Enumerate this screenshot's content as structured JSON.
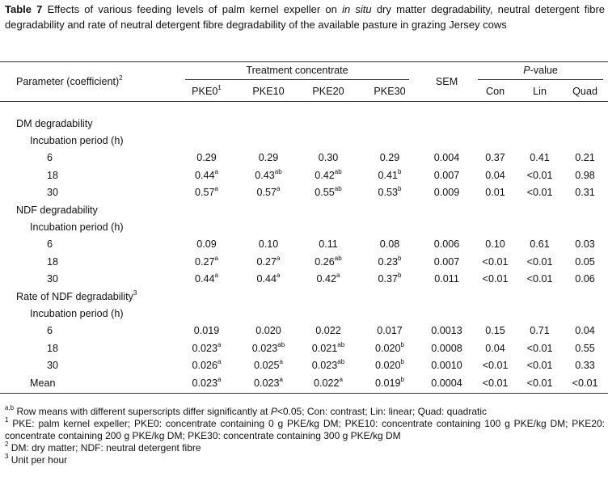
{
  "caption": {
    "label": "Table 7",
    "text_before": " Effects of various feeding levels of palm kernel expeller on ",
    "italic": "in situ",
    "text_after": " dry matter degradability, neutral detergent fibre degradability and rate of neutral detergent fibre degradability of the available pasture in grazing Jersey cows"
  },
  "header": {
    "parameter": "Parameter (coefficient)",
    "parameter_sup": "2",
    "treatment": "Treatment concentrate",
    "sem": "SEM",
    "pvalue_italic": "P",
    "pvalue_rest": "-value",
    "columns": [
      {
        "text": "PKE0",
        "sup": "1"
      },
      "PKE10",
      "PKE20",
      "PKE30"
    ],
    "pcolumns": [
      "Con",
      "Lin",
      "Quad"
    ]
  },
  "sections": [
    {
      "title": "DM degradability",
      "subtitle": "Incubation period (h)",
      "rows": [
        {
          "label": "6",
          "cells": [
            "0.29",
            "0.29",
            "0.30",
            "0.29",
            "0.004",
            "0.37",
            "0.41",
            "0.21"
          ]
        },
        {
          "label": "18",
          "cells": [
            {
              "text": "0.44",
              "sup": "a"
            },
            {
              "text": "0.43",
              "sup": "ab"
            },
            {
              "text": "0.42",
              "sup": "ab"
            },
            {
              "text": "0.41",
              "sup": "b"
            },
            "0.007",
            "0.04",
            "<0.01",
            "0.98"
          ]
        },
        {
          "label": "30",
          "cells": [
            {
              "text": "0.57",
              "sup": "a"
            },
            {
              "text": "0.57",
              "sup": "a"
            },
            {
              "text": "0.55",
              "sup": "ab"
            },
            {
              "text": "0.53",
              "sup": "b"
            },
            "0.009",
            "0.01",
            "<0.01",
            "0.31"
          ]
        }
      ]
    },
    {
      "title": "NDF degradability",
      "subtitle": "Incubation period (h)",
      "rows": [
        {
          "label": "6",
          "cells": [
            "0.09",
            "0.10",
            "0.11",
            "0.08",
            "0.006",
            "0.10",
            "0.61",
            "0.03"
          ]
        },
        {
          "label": "18",
          "cells": [
            {
              "text": "0.27",
              "sup": "a"
            },
            {
              "text": "0.27",
              "sup": "a"
            },
            {
              "text": "0.26",
              "sup": "ab"
            },
            {
              "text": "0.23",
              "sup": "b"
            },
            "0.007",
            "<0.01",
            "<0.01",
            "0.05"
          ]
        },
        {
          "label": "30",
          "cells": [
            {
              "text": "0.44",
              "sup": "a"
            },
            {
              "text": "0.44",
              "sup": "a"
            },
            {
              "text": "0.42",
              "sup": "a"
            },
            {
              "text": "0.37",
              "sup": "b"
            },
            "0.011",
            "<0.01",
            "<0.01",
            "0.06"
          ]
        }
      ]
    },
    {
      "title": "Rate of NDF degradability",
      "title_sup": "3",
      "subtitle": "Incubation period (h)",
      "rows": [
        {
          "label": "6",
          "cells": [
            "0.019",
            "0.020",
            "0.022",
            "0.017",
            "0.0013",
            "0.15",
            "0.71",
            "0.04"
          ]
        },
        {
          "label": "18",
          "cells": [
            {
              "text": "0.023",
              "sup": "a"
            },
            {
              "text": "0.023",
              "sup": "ab"
            },
            {
              "text": "0.021",
              "sup": "ab"
            },
            {
              "text": "0.020",
              "sup": "b"
            },
            "0.0008",
            "0.04",
            "<0.01",
            "0.55"
          ]
        },
        {
          "label": "30",
          "cells": [
            {
              "text": "0.026",
              "sup": "a"
            },
            {
              "text": "0.025",
              "sup": "a"
            },
            {
              "text": "0.023",
              "sup": "ab"
            },
            {
              "text": "0.020",
              "sup": "b"
            },
            "0.0010",
            "<0.01",
            "<0.01",
            "0.33"
          ]
        },
        {
          "label": "Mean",
          "cells": [
            {
              "text": "0.023",
              "sup": "a"
            },
            {
              "text": "0.023",
              "sup": "a"
            },
            {
              "text": "0.022",
              "sup": "a"
            },
            {
              "text": "0.019",
              "sup": "b"
            },
            "0.0004",
            "<0.01",
            "<0.01",
            "<0.01"
          ]
        }
      ]
    }
  ],
  "footnotes": [
    {
      "sup": "a,b",
      "text": " Row means with different superscripts differ significantly at ",
      "italic": "P",
      "rest": "<0.05; Con: contrast; Lin: linear; Quad: quadratic"
    },
    {
      "sup": "1",
      "text": " PKE: palm kernel expeller; PKE0: concentrate containing 0 g PKE/kg DM; PKE10: concentrate containing 100 g PKE/kg DM; PKE20: concentrate containing 200 g PKE/kg DM; PKE30: concentrate containing 300 g PKE/kg DM"
    },
    {
      "sup": "2",
      "text": " DM: dry matter; NDF: neutral detergent fibre"
    },
    {
      "sup": "3",
      "text": " Unit per hour"
    }
  ]
}
